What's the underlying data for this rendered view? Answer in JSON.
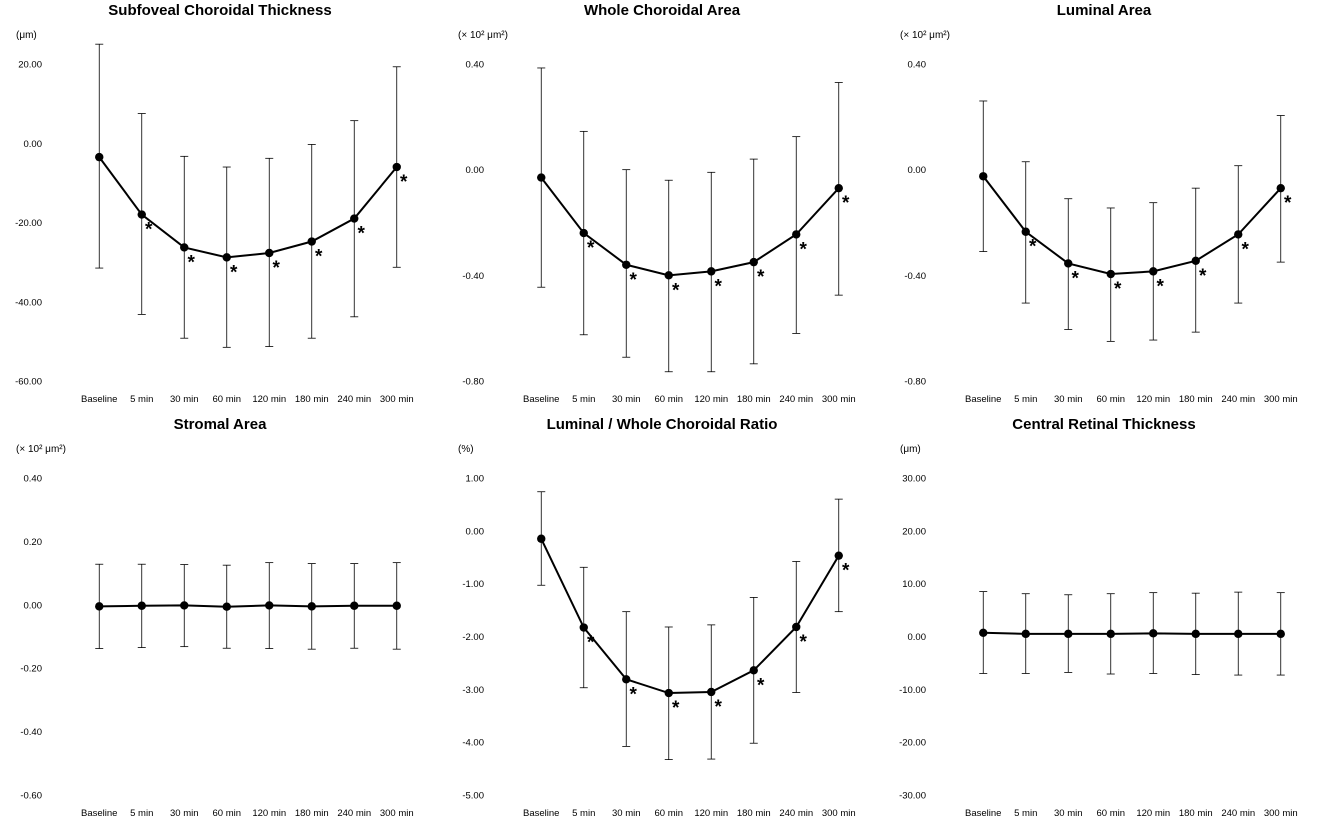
{
  "x_categories": [
    "Baseline",
    "5 min",
    "30 min",
    "60 min",
    "120 min",
    "180 min",
    "240 min",
    "300 min"
  ],
  "chart_data": [
    {
      "type": "line",
      "title": "Subfoveal Choroidal Thickness",
      "unit": "(μm)",
      "categories": [
        "Baseline",
        "5 min",
        "30 min",
        "60 min",
        "120 min",
        "180 min",
        "240 min",
        "300 min"
      ],
      "values": [
        -3.5,
        -18,
        -26.3,
        -28.8,
        -27.7,
        -24.8,
        -19,
        -6
      ],
      "err_upper": [
        25,
        7.5,
        -3.3,
        -6,
        -3.8,
        -0.3,
        5.7,
        19.3
      ],
      "err_lower": [
        -31.5,
        -43.2,
        -49.2,
        -51.5,
        -51.3,
        -49.2,
        -43.8,
        -31.3
      ],
      "significant": [
        false,
        true,
        true,
        true,
        true,
        true,
        true,
        true
      ],
      "ylim": [
        -60,
        20
      ],
      "yticks": [
        20,
        0,
        -20,
        -40,
        -60
      ],
      "ytick_labels": [
        "20.00",
        "0.00",
        "-20.00",
        "-40.00",
        "-60.00"
      ]
    },
    {
      "type": "line",
      "title": "Whole Choroidal Area",
      "unit": "(× 10² μm²)",
      "categories": [
        "Baseline",
        "5 min",
        "30 min",
        "60 min",
        "120 min",
        "180 min",
        "240 min",
        "300 min"
      ],
      "values": [
        -0.03,
        -0.24,
        -0.36,
        -0.4,
        -0.385,
        -0.35,
        -0.245,
        -0.07
      ],
      "err_upper": [
        0.385,
        0.145,
        0.0,
        -0.04,
        -0.01,
        0.04,
        0.125,
        0.33
      ],
      "err_lower": [
        -0.445,
        -0.625,
        -0.71,
        -0.765,
        -0.765,
        -0.735,
        -0.62,
        -0.475
      ],
      "significant": [
        false,
        true,
        true,
        true,
        true,
        true,
        true,
        true
      ],
      "ylim": [
        -0.8,
        0.4
      ],
      "yticks": [
        0.4,
        0,
        -0.4,
        -0.8
      ],
      "ytick_labels": [
        "0.40",
        "0.00",
        "-0.40",
        "-0.80"
      ]
    },
    {
      "type": "line",
      "title": "Luminal Area",
      "unit": "(× 10² μm²)",
      "categories": [
        "Baseline",
        "5 min",
        "30 min",
        "60 min",
        "120 min",
        "180 min",
        "240 min",
        "300 min"
      ],
      "values": [
        -0.025,
        -0.235,
        -0.355,
        -0.395,
        -0.385,
        -0.345,
        -0.245,
        -0.07
      ],
      "err_upper": [
        0.26,
        0.03,
        -0.11,
        -0.145,
        -0.125,
        -0.07,
        0.015,
        0.205
      ],
      "err_lower": [
        -0.31,
        -0.505,
        -0.605,
        -0.65,
        -0.645,
        -0.615,
        -0.505,
        -0.35
      ],
      "significant": [
        false,
        true,
        true,
        true,
        true,
        true,
        true,
        true
      ],
      "ylim": [
        -0.8,
        0.4
      ],
      "yticks": [
        0.4,
        0,
        -0.4,
        -0.8
      ],
      "ytick_labels": [
        "0.40",
        "0.00",
        "-0.40",
        "-0.80"
      ]
    },
    {
      "type": "line",
      "title": "Stromal Area",
      "unit": "(× 10² μm²)",
      "categories": [
        "Baseline",
        "5 min",
        "30 min",
        "60 min",
        "120 min",
        "180 min",
        "240 min",
        "300 min"
      ],
      "values": [
        -0.005,
        -0.003,
        -0.002,
        -0.006,
        -0.002,
        -0.005,
        -0.003,
        -0.003
      ],
      "err_upper": [
        0.128,
        0.128,
        0.127,
        0.125,
        0.133,
        0.13,
        0.13,
        0.133
      ],
      "err_lower": [
        -0.138,
        -0.135,
        -0.132,
        -0.137,
        -0.138,
        -0.14,
        -0.137,
        -0.14
      ],
      "significant": [
        false,
        false,
        false,
        false,
        false,
        false,
        false,
        false
      ],
      "ylim": [
        -0.6,
        0.4
      ],
      "yticks": [
        0.4,
        0.2,
        0,
        -0.2,
        -0.4,
        -0.6
      ],
      "ytick_labels": [
        "0.40",
        "0.20",
        "0.00",
        "-0.20",
        "-0.40",
        "-0.60"
      ]
    },
    {
      "type": "line",
      "title": "Luminal / Whole Choroidal Ratio",
      "unit": "(%)",
      "categories": [
        "Baseline",
        "5 min",
        "30 min",
        "60 min",
        "120 min",
        "180 min",
        "240 min",
        "300 min"
      ],
      "values": [
        -0.15,
        -1.83,
        -2.81,
        -3.07,
        -3.05,
        -2.64,
        -1.82,
        -0.47
      ],
      "err_upper": [
        0.74,
        -0.69,
        -1.53,
        -1.82,
        -1.78,
        -1.26,
        -0.58,
        0.6
      ],
      "err_lower": [
        -1.03,
        -2.97,
        -4.08,
        -4.33,
        -4.32,
        -4.02,
        -3.06,
        -1.53
      ],
      "significant": [
        false,
        true,
        true,
        true,
        true,
        true,
        true,
        true
      ],
      "ylim": [
        -5,
        1
      ],
      "yticks": [
        1,
        0,
        -1,
        -2,
        -3,
        -4,
        -5
      ],
      "ytick_labels": [
        "1.00",
        "0.00",
        "-1.00",
        "-2.00",
        "-3.00",
        "-4.00",
        "-5.00"
      ]
    },
    {
      "type": "line",
      "title": "Central Retinal Thickness",
      "unit": "(μm)",
      "categories": [
        "Baseline",
        "5 min",
        "30 min",
        "60 min",
        "120 min",
        "180 min",
        "240 min",
        "300 min"
      ],
      "values": [
        0.7,
        0.5,
        0.5,
        0.5,
        0.6,
        0.5,
        0.5,
        0.5
      ],
      "err_upper": [
        8.5,
        8.1,
        7.9,
        8.1,
        8.3,
        8.2,
        8.4,
        8.3
      ],
      "err_lower": [
        -7.0,
        -7.0,
        -6.8,
        -7.1,
        -7.0,
        -7.2,
        -7.3,
        -7.3
      ],
      "significant": [
        false,
        false,
        false,
        false,
        false,
        false,
        false,
        false
      ],
      "ylim": [
        -30,
        30
      ],
      "yticks": [
        30,
        20,
        10,
        0,
        -10,
        -20,
        -30
      ],
      "ytick_labels": [
        "30.00",
        "20.00",
        "10.00",
        "0.00",
        "-10.00",
        "-20.00",
        "-30.00"
      ]
    }
  ]
}
